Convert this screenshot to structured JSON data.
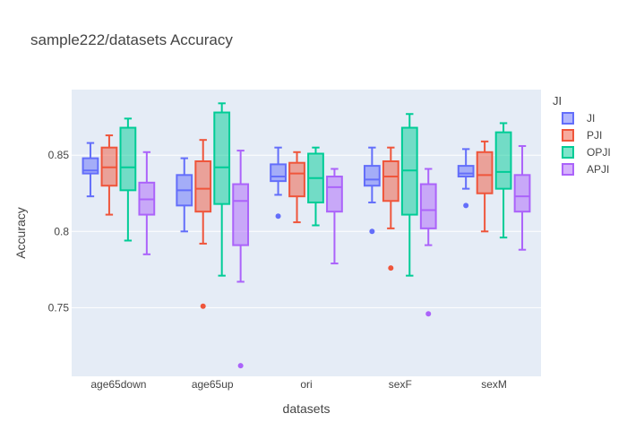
{
  "chart_data": {
    "type": "box",
    "title": "sample222/datasets Accuracy",
    "xlabel": "datasets",
    "ylabel": "Accuracy",
    "ylim": [
      0.705,
      0.893
    ],
    "yticks": [
      0.75,
      0.8,
      0.85
    ],
    "ytick_labels": [
      "0.75",
      "0.8",
      "0.85"
    ],
    "categories": [
      "age65down",
      "age65up",
      "ori",
      "sexF",
      "sexM"
    ],
    "legend_title": "JI",
    "legend_position": "right",
    "background": "#e5ecf6",
    "grid": true,
    "series": [
      {
        "name": "JI",
        "color": "#636efa",
        "boxes": [
          {
            "min": 0.823,
            "q1": 0.838,
            "median": 0.84,
            "q3": 0.848,
            "max": 0.858,
            "outliers": []
          },
          {
            "min": 0.8,
            "q1": 0.817,
            "median": 0.827,
            "q3": 0.837,
            "max": 0.848,
            "outliers": []
          },
          {
            "min": 0.824,
            "q1": 0.833,
            "median": 0.836,
            "q3": 0.844,
            "max": 0.855,
            "outliers": [
              0.81
            ]
          },
          {
            "min": 0.819,
            "q1": 0.83,
            "median": 0.834,
            "q3": 0.843,
            "max": 0.855,
            "outliers": [
              0.8
            ]
          },
          {
            "min": 0.828,
            "q1": 0.836,
            "median": 0.838,
            "q3": 0.843,
            "max": 0.854,
            "outliers": [
              0.817
            ]
          }
        ]
      },
      {
        "name": "PJI",
        "color": "#ef553b",
        "boxes": [
          {
            "min": 0.811,
            "q1": 0.83,
            "median": 0.842,
            "q3": 0.855,
            "max": 0.863,
            "outliers": []
          },
          {
            "min": 0.792,
            "q1": 0.813,
            "median": 0.828,
            "q3": 0.846,
            "max": 0.86,
            "outliers": [
              0.751
            ]
          },
          {
            "min": 0.806,
            "q1": 0.823,
            "median": 0.838,
            "q3": 0.845,
            "max": 0.852,
            "outliers": []
          },
          {
            "min": 0.802,
            "q1": 0.82,
            "median": 0.836,
            "q3": 0.846,
            "max": 0.855,
            "outliers": [
              0.776
            ]
          },
          {
            "min": 0.8,
            "q1": 0.825,
            "median": 0.837,
            "q3": 0.852,
            "max": 0.859,
            "outliers": []
          }
        ]
      },
      {
        "name": "OPJI",
        "color": "#00cc96",
        "boxes": [
          {
            "min": 0.794,
            "q1": 0.827,
            "median": 0.842,
            "q3": 0.868,
            "max": 0.874,
            "outliers": []
          },
          {
            "min": 0.771,
            "q1": 0.818,
            "median": 0.842,
            "q3": 0.878,
            "max": 0.884,
            "outliers": []
          },
          {
            "min": 0.804,
            "q1": 0.819,
            "median": 0.835,
            "q3": 0.851,
            "max": 0.855,
            "outliers": []
          },
          {
            "min": 0.771,
            "q1": 0.811,
            "median": 0.84,
            "q3": 0.868,
            "max": 0.877,
            "outliers": []
          },
          {
            "min": 0.796,
            "q1": 0.828,
            "median": 0.839,
            "q3": 0.865,
            "max": 0.871,
            "outliers": []
          }
        ]
      },
      {
        "name": "APJI",
        "color": "#ab63fa",
        "boxes": [
          {
            "min": 0.785,
            "q1": 0.811,
            "median": 0.821,
            "q3": 0.832,
            "max": 0.852,
            "outliers": []
          },
          {
            "min": 0.767,
            "q1": 0.791,
            "median": 0.82,
            "q3": 0.831,
            "max": 0.853,
            "outliers": [
              0.712
            ]
          },
          {
            "min": 0.779,
            "q1": 0.813,
            "median": 0.829,
            "q3": 0.836,
            "max": 0.841,
            "outliers": []
          },
          {
            "min": 0.791,
            "q1": 0.802,
            "median": 0.814,
            "q3": 0.831,
            "max": 0.841,
            "outliers": [
              0.746
            ]
          },
          {
            "min": 0.788,
            "q1": 0.813,
            "median": 0.823,
            "q3": 0.837,
            "max": 0.856,
            "outliers": []
          }
        ]
      }
    ]
  }
}
